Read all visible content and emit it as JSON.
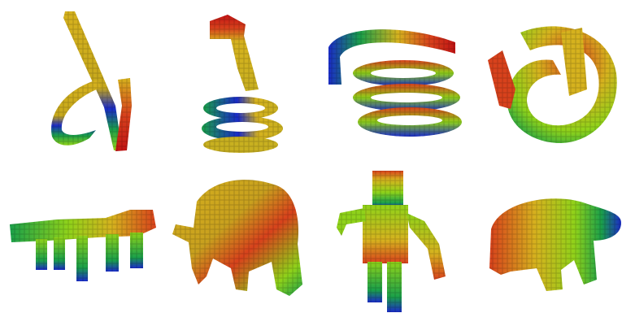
{
  "figure": {
    "panels": [
      {
        "shape": "curl-stroke",
        "row": 1,
        "col": 1
      },
      {
        "shape": "snake-coil",
        "row": 1,
        "col": 2
      },
      {
        "shape": "coiled-spring",
        "row": 1,
        "col": 3
      },
      {
        "shape": "knot",
        "row": 1,
        "col": 4
      },
      {
        "shape": "quadruped",
        "row": 2,
        "col": 1
      },
      {
        "shape": "elephant",
        "row": 2,
        "col": 2
      },
      {
        "shape": "humanoid",
        "row": 2,
        "col": 3
      },
      {
        "shape": "turtle",
        "row": 2,
        "col": 4
      }
    ],
    "colormap": [
      "#1a2bc8",
      "#1aa04a",
      "#8fd21a",
      "#d6b21e",
      "#d8421c",
      "#c21414"
    ]
  }
}
